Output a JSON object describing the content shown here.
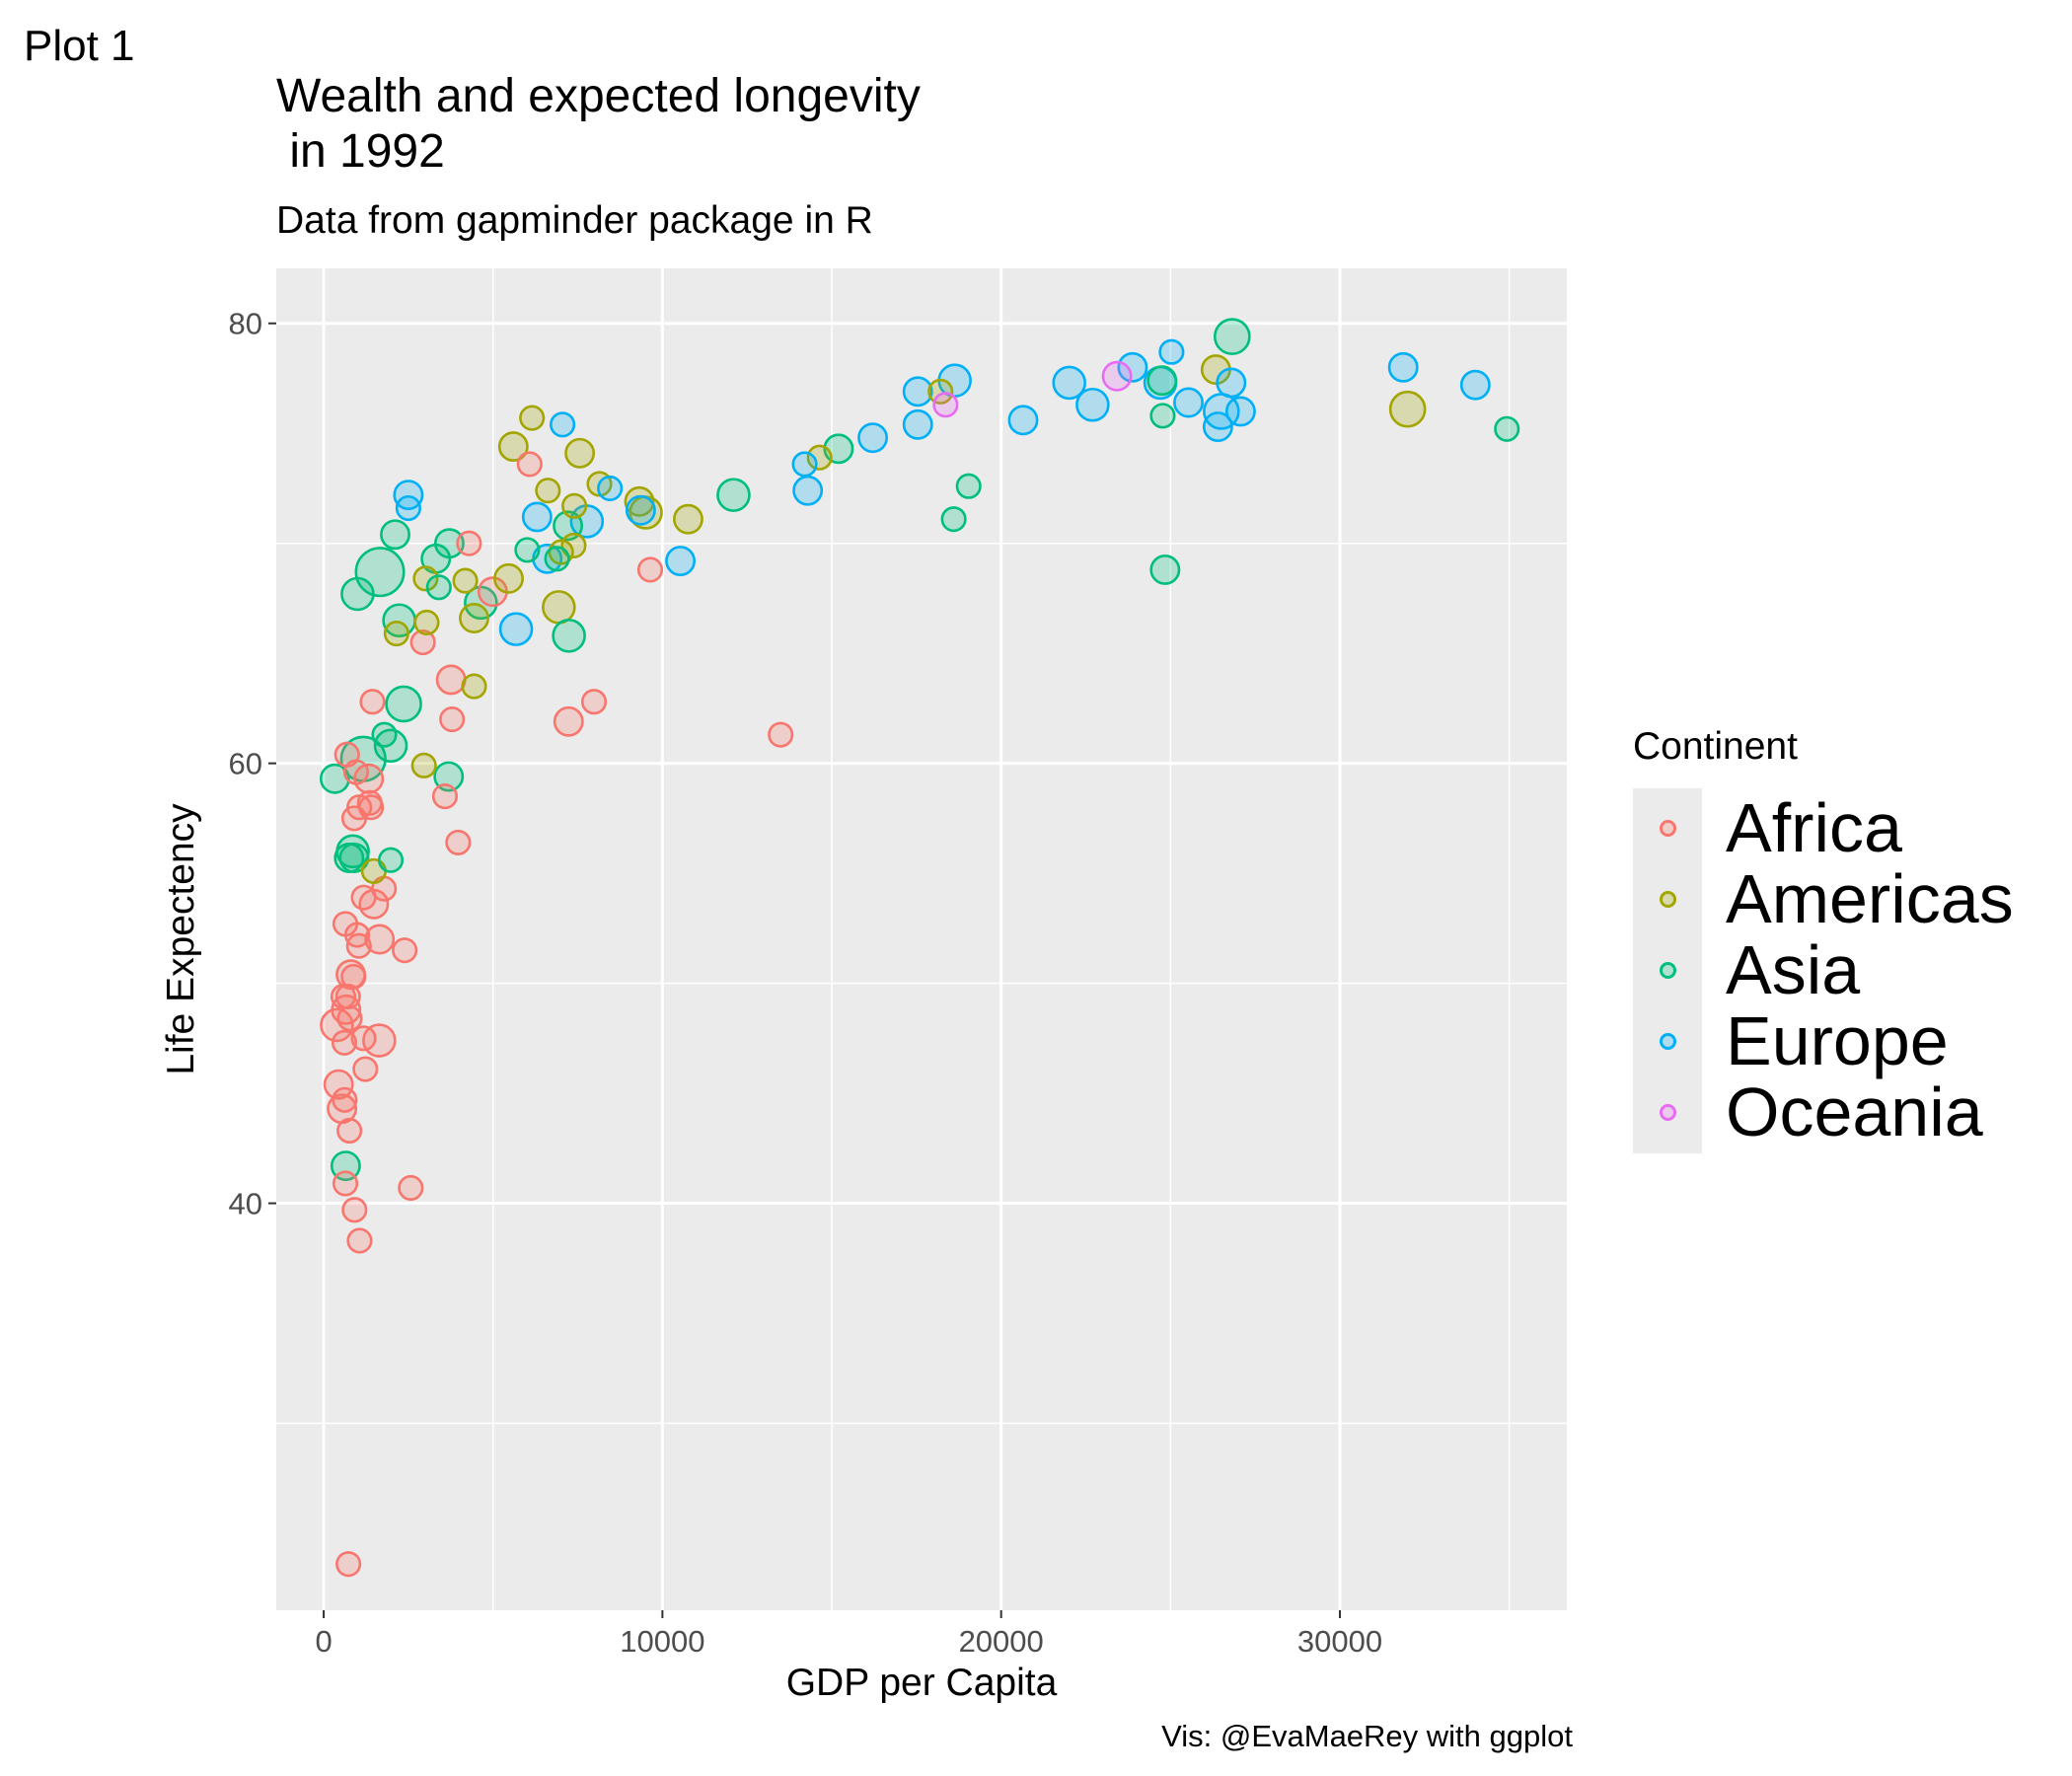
{
  "plot_label": "Plot 1",
  "chart_data": {
    "type": "scatter",
    "title": "Wealth and expected longevity\n in 1992",
    "subtitle": "Data from gapminder package in R",
    "xlabel": "GDP per Capita",
    "ylabel": "Life Expectency",
    "caption": "Vis: @EvaMaeRey with ggplot",
    "xlim": [
      -1400,
      36700
    ],
    "ylim": [
      21.5,
      82.5
    ],
    "x_ticks": [
      0,
      10000,
      20000,
      30000
    ],
    "x_tick_labels": [
      "0",
      "10000",
      "20000",
      "30000"
    ],
    "y_ticks": [
      40,
      60,
      80
    ],
    "y_tick_labels": [
      "40",
      "60",
      "80"
    ],
    "y_minor_ticks": [
      30,
      50,
      70
    ],
    "x_minor_ticks": [
      5000,
      15000,
      25000,
      35000
    ],
    "grid": true,
    "legend": {
      "title": "Continent",
      "position": "right",
      "entries": [
        "Africa",
        "Americas",
        "Asia",
        "Europe",
        "Oceania"
      ]
    },
    "colors": {
      "Africa": "#F8766D",
      "Americas": "#A3A500",
      "Asia": "#00BF7D",
      "Europe": "#00B0F6",
      "Oceania": "#E76BF3"
    },
    "series": [
      {
        "name": "Africa",
        "points": [
          {
            "x": 730,
            "y": 23.6,
            "size": 1
          },
          {
            "x": 2570,
            "y": 40.7,
            "size": 1
          },
          {
            "x": 910,
            "y": 39.7,
            "size": 1
          },
          {
            "x": 1060,
            "y": 38.3,
            "size": 1
          },
          {
            "x": 640,
            "y": 40.9,
            "size": 1
          },
          {
            "x": 760,
            "y": 43.3,
            "size": 1
          },
          {
            "x": 620,
            "y": 44.7,
            "size": 1
          },
          {
            "x": 540,
            "y": 44.3,
            "size": 2
          },
          {
            "x": 440,
            "y": 45.4,
            "size": 2
          },
          {
            "x": 1230,
            "y": 46.1,
            "size": 1
          },
          {
            "x": 610,
            "y": 47.3,
            "size": 1
          },
          {
            "x": 1180,
            "y": 47.5,
            "size": 1
          },
          {
            "x": 1640,
            "y": 47.4,
            "size": 3
          },
          {
            "x": 390,
            "y": 48.1,
            "size": 3
          },
          {
            "x": 660,
            "y": 48.8,
            "size": 2
          },
          {
            "x": 770,
            "y": 48.4,
            "size": 1
          },
          {
            "x": 580,
            "y": 49.4,
            "size": 1
          },
          {
            "x": 720,
            "y": 49.4,
            "size": 1
          },
          {
            "x": 800,
            "y": 50.4,
            "size": 2
          },
          {
            "x": 880,
            "y": 50.3,
            "size": 1
          },
          {
            "x": 1040,
            "y": 51.7,
            "size": 1
          },
          {
            "x": 990,
            "y": 52.2,
            "size": 1
          },
          {
            "x": 1650,
            "y": 52.0,
            "size": 2
          },
          {
            "x": 2390,
            "y": 51.5,
            "size": 1
          },
          {
            "x": 640,
            "y": 52.7,
            "size": 1
          },
          {
            "x": 1180,
            "y": 53.9,
            "size": 1
          },
          {
            "x": 1480,
            "y": 53.6,
            "size": 2
          },
          {
            "x": 1780,
            "y": 54.3,
            "size": 1
          },
          {
            "x": 3970,
            "y": 56.4,
            "size": 1
          },
          {
            "x": 900,
            "y": 57.5,
            "size": 1
          },
          {
            "x": 1050,
            "y": 58.0,
            "size": 1
          },
          {
            "x": 1360,
            "y": 58.2,
            "size": 1
          },
          {
            "x": 1400,
            "y": 58.0,
            "size": 1
          },
          {
            "x": 3580,
            "y": 58.5,
            "size": 1
          },
          {
            "x": 960,
            "y": 59.6,
            "size": 1
          },
          {
            "x": 1330,
            "y": 59.3,
            "size": 2
          },
          {
            "x": 690,
            "y": 60.4,
            "size": 1
          },
          {
            "x": 13490,
            "y": 61.3,
            "size": 1
          },
          {
            "x": 3790,
            "y": 62.0,
            "size": 1
          },
          {
            "x": 7230,
            "y": 61.9,
            "size": 2
          },
          {
            "x": 1440,
            "y": 62.8,
            "size": 1
          },
          {
            "x": 7980,
            "y": 62.8,
            "size": 1
          },
          {
            "x": 3760,
            "y": 63.8,
            "size": 2
          },
          {
            "x": 2930,
            "y": 65.5,
            "size": 1
          },
          {
            "x": 4990,
            "y": 67.8,
            "size": 2
          },
          {
            "x": 9640,
            "y": 68.8,
            "size": 1
          },
          {
            "x": 4290,
            "y": 70.0,
            "size": 1
          },
          {
            "x": 6080,
            "y": 73.6,
            "size": 1
          }
        ]
      },
      {
        "name": "Americas",
        "points": [
          {
            "x": 1480,
            "y": 55.1,
            "size": 1
          },
          {
            "x": 2960,
            "y": 59.9,
            "size": 1
          },
          {
            "x": 2150,
            "y": 65.9,
            "size": 1
          },
          {
            "x": 3040,
            "y": 66.4,
            "size": 1
          },
          {
            "x": 4440,
            "y": 66.6,
            "size": 2
          },
          {
            "x": 4440,
            "y": 63.5,
            "size": 1
          },
          {
            "x": 3010,
            "y": 68.4,
            "size": 1
          },
          {
            "x": 4180,
            "y": 68.3,
            "size": 1
          },
          {
            "x": 5460,
            "y": 68.4,
            "size": 2
          },
          {
            "x": 6940,
            "y": 67.1,
            "size": 3
          },
          {
            "x": 7010,
            "y": 69.6,
            "size": 1
          },
          {
            "x": 7380,
            "y": 69.9,
            "size": 1
          },
          {
            "x": 7400,
            "y": 71.7,
            "size": 1
          },
          {
            "x": 6620,
            "y": 72.4,
            "size": 1
          },
          {
            "x": 8140,
            "y": 72.7,
            "size": 1
          },
          {
            "x": 9320,
            "y": 71.9,
            "size": 2
          },
          {
            "x": 9510,
            "y": 71.4,
            "size": 3
          },
          {
            "x": 10760,
            "y": 71.1,
            "size": 2
          },
          {
            "x": 5600,
            "y": 74.4,
            "size": 2
          },
          {
            "x": 7560,
            "y": 74.1,
            "size": 2
          },
          {
            "x": 6150,
            "y": 75.7,
            "size": 1
          },
          {
            "x": 14640,
            "y": 73.9,
            "size": 1
          },
          {
            "x": 18210,
            "y": 76.9,
            "size": 1
          },
          {
            "x": 26340,
            "y": 77.9,
            "size": 2
          },
          {
            "x": 32000,
            "y": 76.1,
            "size": 4
          }
        ]
      },
      {
        "name": "Asia",
        "points": [
          {
            "x": 650,
            "y": 41.7,
            "size": 2
          },
          {
            "x": 1980,
            "y": 55.6,
            "size": 1
          },
          {
            "x": 750,
            "y": 55.7,
            "size": 2
          },
          {
            "x": 900,
            "y": 55.7,
            "size": 2
          },
          {
            "x": 860,
            "y": 56.0,
            "size": 3
          },
          {
            "x": 330,
            "y": 59.3,
            "size": 2
          },
          {
            "x": 1170,
            "y": 60.2,
            "size": 8
          },
          {
            "x": 1790,
            "y": 61.3,
            "size": 1
          },
          {
            "x": 1980,
            "y": 60.8,
            "size": 3
          },
          {
            "x": 3690,
            "y": 59.4,
            "size": 2
          },
          {
            "x": 2360,
            "y": 62.7,
            "size": 4
          },
          {
            "x": 2230,
            "y": 66.5,
            "size": 3
          },
          {
            "x": 4640,
            "y": 67.3,
            "size": 3
          },
          {
            "x": 7240,
            "y": 65.8,
            "size": 3
          },
          {
            "x": 1000,
            "y": 67.7,
            "size": 3
          },
          {
            "x": 1660,
            "y": 68.7,
            "size": 10
          },
          {
            "x": 3400,
            "y": 68.0,
            "size": 1
          },
          {
            "x": 3310,
            "y": 69.3,
            "size": 2
          },
          {
            "x": 3710,
            "y": 70.0,
            "size": 2
          },
          {
            "x": 2110,
            "y": 70.4,
            "size": 2
          },
          {
            "x": 7210,
            "y": 70.8,
            "size": 2
          },
          {
            "x": 6010,
            "y": 69.7,
            "size": 1
          },
          {
            "x": 6890,
            "y": 69.3,
            "size": 1
          },
          {
            "x": 12100,
            "y": 72.2,
            "size": 3
          },
          {
            "x": 15200,
            "y": 74.3,
            "size": 2
          },
          {
            "x": 19040,
            "y": 72.6,
            "size": 1
          },
          {
            "x": 18600,
            "y": 71.1,
            "size": 1
          },
          {
            "x": 24840,
            "y": 68.8,
            "size": 2
          },
          {
            "x": 24770,
            "y": 75.8,
            "size": 1
          },
          {
            "x": 24750,
            "y": 77.4,
            "size": 2
          },
          {
            "x": 26820,
            "y": 79.4,
            "size": 4
          },
          {
            "x": 34930,
            "y": 75.2,
            "size": 1
          }
        ]
      },
      {
        "name": "Europe",
        "points": [
          {
            "x": 2500,
            "y": 71.6,
            "size": 1
          },
          {
            "x": 2500,
            "y": 72.2,
            "size": 2
          },
          {
            "x": 5680,
            "y": 66.1,
            "size": 3
          },
          {
            "x": 6300,
            "y": 71.2,
            "size": 2
          },
          {
            "x": 6600,
            "y": 69.3,
            "size": 2
          },
          {
            "x": 7050,
            "y": 75.4,
            "size": 1
          },
          {
            "x": 7770,
            "y": 71.0,
            "size": 3
          },
          {
            "x": 8450,
            "y": 72.5,
            "size": 1
          },
          {
            "x": 9360,
            "y": 71.5,
            "size": 2
          },
          {
            "x": 10530,
            "y": 69.2,
            "size": 2
          },
          {
            "x": 14200,
            "y": 73.6,
            "size": 1
          },
          {
            "x": 14290,
            "y": 72.4,
            "size": 2
          },
          {
            "x": 16210,
            "y": 74.8,
            "size": 2
          },
          {
            "x": 17540,
            "y": 75.4,
            "size": 2
          },
          {
            "x": 17540,
            "y": 76.9,
            "size": 2
          },
          {
            "x": 18630,
            "y": 77.4,
            "size": 3
          },
          {
            "x": 20650,
            "y": 75.6,
            "size": 2
          },
          {
            "x": 22010,
            "y": 77.3,
            "size": 3
          },
          {
            "x": 22700,
            "y": 76.3,
            "size": 3
          },
          {
            "x": 23880,
            "y": 78.0,
            "size": 2
          },
          {
            "x": 24700,
            "y": 77.3,
            "size": 3
          },
          {
            "x": 25030,
            "y": 78.7,
            "size": 1
          },
          {
            "x": 25530,
            "y": 76.4,
            "size": 2
          },
          {
            "x": 26400,
            "y": 75.3,
            "size": 2
          },
          {
            "x": 26500,
            "y": 76.0,
            "size": 4
          },
          {
            "x": 26790,
            "y": 77.3,
            "size": 2
          },
          {
            "x": 27070,
            "y": 76.0,
            "size": 2
          },
          {
            "x": 31870,
            "y": 78.0,
            "size": 2
          },
          {
            "x": 34000,
            "y": 77.2,
            "size": 2
          }
        ]
      },
      {
        "name": "Oceania",
        "points": [
          {
            "x": 18360,
            "y": 76.3,
            "size": 1
          },
          {
            "x": 23420,
            "y": 77.6,
            "size": 2
          }
        ]
      }
    ]
  }
}
